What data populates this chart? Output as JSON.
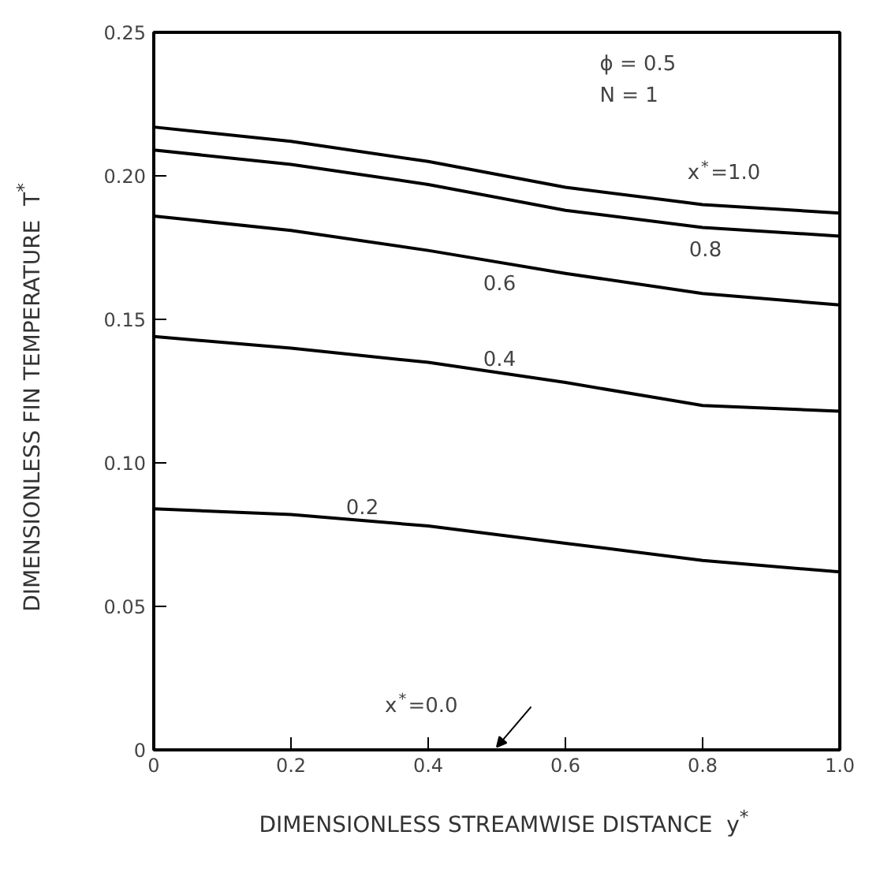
{
  "chart_data": {
    "type": "line",
    "xlabel": "DIMENSIONLESS STREAMWISE DISTANCE  y$^{*}$",
    "ylabel": "DIMENSIONLESS FIN TEMPERATURE  T$^{*}$",
    "x": [
      0,
      0.2,
      0.4,
      0.6,
      0.8,
      1.0
    ],
    "series": [
      {
        "name": "x$^{*}$=1.0",
        "color": "#000000",
        "values": [
          0.217,
          0.212,
          0.205,
          0.196,
          0.19,
          0.187
        ]
      },
      {
        "name": "0.8",
        "color": "#000000",
        "values": [
          0.209,
          0.204,
          0.197,
          0.188,
          0.182,
          0.179
        ]
      },
      {
        "name": "0.6",
        "color": "#000000",
        "values": [
          0.186,
          0.181,
          0.174,
          0.166,
          0.159,
          0.155
        ]
      },
      {
        "name": "0.4",
        "color": "#000000",
        "values": [
          0.144,
          0.14,
          0.135,
          0.128,
          0.12,
          0.118
        ]
      },
      {
        "name": "0.2",
        "color": "#000000",
        "values": [
          0.084,
          0.082,
          0.078,
          0.072,
          0.066,
          0.062
        ]
      },
      {
        "name": "x$^{*}$=0.0",
        "color": "#000000",
        "values": [
          0,
          0,
          0,
          0,
          0,
          0
        ]
      }
    ],
    "annotations": [
      "ϕ = 0.5",
      "N = 1"
    ],
    "xlim": [
      0,
      1.0
    ],
    "ylim": [
      0,
      0.25
    ],
    "xticks": [
      0,
      {
        "value": 0.2,
        "label": "0.2"
      },
      {
        "value": 0.4,
        "label": "0.4"
      },
      {
        "value": 0.6,
        "label": "0.6"
      },
      {
        "value": 0.8,
        "label": "0.8"
      },
      {
        "value": 1.0,
        "label": "1.0"
      }
    ],
    "yticks": [
      0,
      0.05,
      {
        "value": 0.1,
        "label": "0.10"
      },
      0.15,
      {
        "value": 0.2,
        "label": "0.20"
      },
      0.25
    ],
    "grid": false,
    "legend": false,
    "marker": "none",
    "line_style": "solid"
  }
}
